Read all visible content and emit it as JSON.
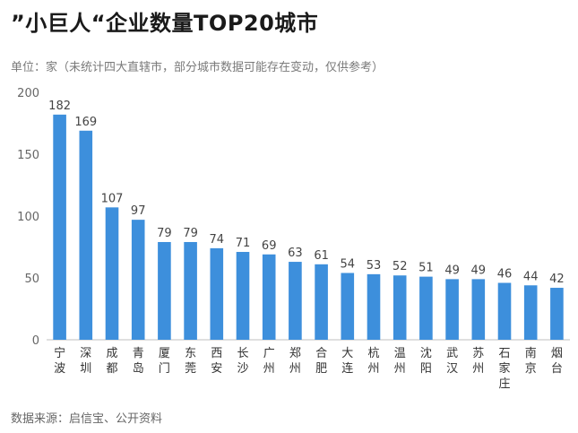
{
  "chart_data": {
    "type": "bar",
    "title": "”小巨人“企业数量TOP20城市",
    "subtitle": "单位：家（未统计四大直辖市，部分城市数据可能存在变动，仅供参考）",
    "source": "数据来源：启信宝、公开资料",
    "categories": [
      "宁波",
      "深圳",
      "成都",
      "青岛",
      "厦门",
      "东莞",
      "西安",
      "长沙",
      "广州",
      "郑州",
      "合肥",
      "大连",
      "杭州",
      "温州",
      "沈阳",
      "武汉",
      "苏州",
      "石家庄",
      "南京",
      "烟台"
    ],
    "values": [
      182,
      169,
      107,
      97,
      79,
      79,
      74,
      71,
      69,
      63,
      61,
      54,
      53,
      52,
      51,
      49,
      49,
      46,
      44,
      42
    ],
    "yticks": [
      0,
      50,
      100,
      150,
      200
    ],
    "ylim": [
      0,
      200
    ],
    "grid": false,
    "bar_color": "#3d8fdc"
  }
}
